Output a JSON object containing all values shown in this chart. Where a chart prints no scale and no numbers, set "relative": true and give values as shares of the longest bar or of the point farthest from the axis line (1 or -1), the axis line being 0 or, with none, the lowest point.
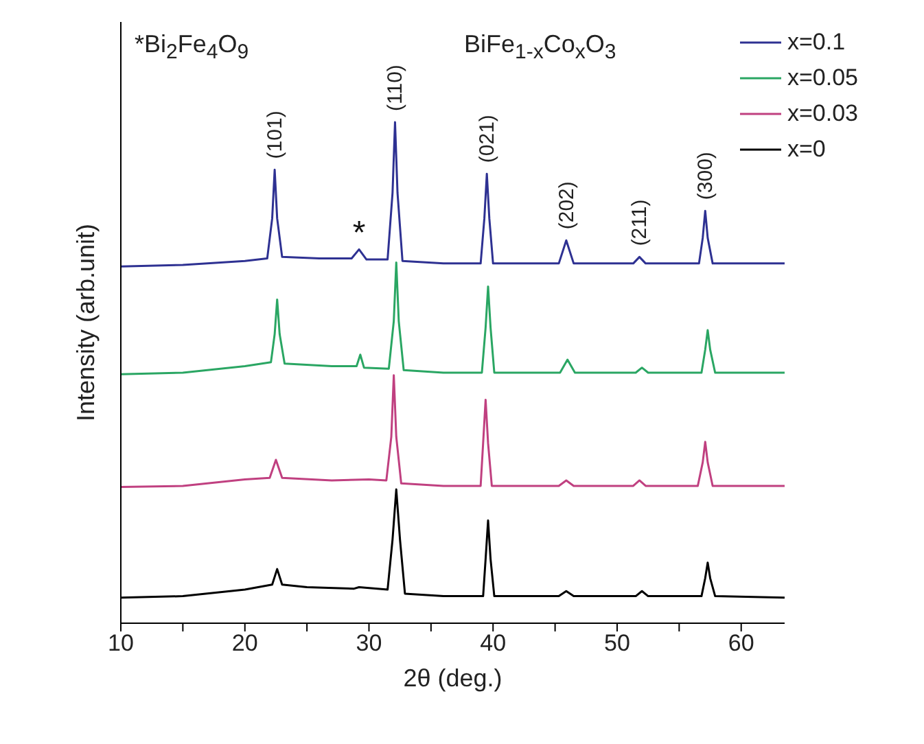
{
  "chart_data": {
    "type": "line",
    "relative": true,
    "xlabel": "2θ (deg.)",
    "ylabel": "Intensity (arb.unit)",
    "xlim": [
      10,
      63.5
    ],
    "xticks": [
      10,
      {
        "value": 15,
        "label": null
      },
      20,
      {
        "value": 25,
        "label": null
      },
      30,
      {
        "value": 35,
        "label": null
      },
      40,
      {
        "value": 45,
        "label": null
      },
      50,
      {
        "value": 55,
        "label": null
      },
      60
    ],
    "legend": "top right",
    "marker": "none",
    "line_style": "solid",
    "annotations": [
      "*Bi$_{2}$Fe$_{4}$O$_{9}$",
      "BiFe$_{1-x}$Co$_{x}$O$_{3}$",
      {
        "text": "(101)",
        "x": 22.4,
        "y": 0.905
      },
      {
        "text": "*",
        "x": 29.2,
        "y": 0.746
      },
      {
        "text": "(110)",
        "x": 32.1,
        "y": 1
      },
      {
        "text": "(021)",
        "x": 39.5,
        "y": 0.897
      },
      {
        "text": "(202)",
        "x": 45.9,
        "y": 0.764
      },
      {
        "text": "(211)",
        "x": 51.8,
        "y": 0.731
      },
      {
        "text": "(300)",
        "x": 57.1,
        "y": 0.823
      }
    ],
    "series": [
      {
        "name": "x=0.1",
        "color": "#2e3192",
        "x": [
          10,
          15,
          20,
          21.8,
          22.2,
          22.4,
          22.6,
          23.0,
          26,
          28.6,
          29.2,
          29.8,
          31.5,
          31.9,
          32.1,
          32.3,
          32.7,
          36,
          39.0,
          39.3,
          39.5,
          39.7,
          40.0,
          45.3,
          45.9,
          46.5,
          51.3,
          51.8,
          52.3,
          56.6,
          56.9,
          57.1,
          57.3,
          57.7,
          63.5
        ],
        "values": [
          0.712,
          0.715,
          0.723,
          0.728,
          0.808,
          0.905,
          0.808,
          0.731,
          0.728,
          0.728,
          0.746,
          0.726,
          0.726,
          0.859,
          1,
          0.859,
          0.723,
          0.718,
          0.718,
          0.808,
          0.897,
          0.808,
          0.718,
          0.718,
          0.764,
          0.718,
          0.718,
          0.731,
          0.718,
          0.718,
          0.769,
          0.823,
          0.769,
          0.718,
          0.718
        ]
      },
      {
        "name": "x=0.05",
        "color": "#2aa663",
        "x": [
          10,
          15,
          20,
          22.1,
          22.4,
          22.6,
          22.8,
          23.2,
          27,
          29.0,
          29.3,
          29.6,
          31.6,
          32.0,
          32.2,
          32.4,
          32.8,
          36,
          39.1,
          39.4,
          39.6,
          39.8,
          40.1,
          45.4,
          46.0,
          46.6,
          51.5,
          52.0,
          52.5,
          56.8,
          57.1,
          57.3,
          57.5,
          57.9,
          63.5
        ],
        "values": [
          0.497,
          0.5,
          0.513,
          0.521,
          0.577,
          0.646,
          0.577,
          0.518,
          0.513,
          0.513,
          0.536,
          0.51,
          0.508,
          0.603,
          0.72,
          0.603,
          0.505,
          0.5,
          0.5,
          0.59,
          0.672,
          0.59,
          0.5,
          0.5,
          0.526,
          0.5,
          0.5,
          0.51,
          0.5,
          0.5,
          0.546,
          0.585,
          0.546,
          0.5,
          0.5
        ]
      },
      {
        "name": "x=0.03",
        "color": "#c04080",
        "x": [
          10,
          15,
          20,
          22.0,
          22.5,
          23.0,
          27,
          30,
          31.4,
          31.8,
          32.0,
          32.2,
          32.6,
          36,
          39.0,
          39.2,
          39.4,
          39.6,
          39.9,
          45.3,
          45.9,
          46.5,
          51.3,
          51.8,
          52.3,
          56.5,
          56.9,
          57.1,
          57.3,
          57.7,
          63.5
        ],
        "values": [
          0.272,
          0.274,
          0.287,
          0.29,
          0.326,
          0.29,
          0.285,
          0.287,
          0.285,
          0.372,
          0.495,
          0.372,
          0.279,
          0.274,
          0.274,
          0.359,
          0.446,
          0.359,
          0.274,
          0.274,
          0.285,
          0.274,
          0.274,
          0.285,
          0.274,
          0.274,
          0.321,
          0.362,
          0.321,
          0.274,
          0.274
        ]
      },
      {
        "name": "x=0",
        "color": "#000000",
        "x": [
          10,
          15,
          20,
          22.2,
          22.6,
          23.0,
          25,
          28.8,
          29.2,
          31.5,
          31.9,
          32.2,
          32.5,
          32.9,
          36,
          39.2,
          39.4,
          39.6,
          39.8,
          40.1,
          45.3,
          45.9,
          46.5,
          51.5,
          52.0,
          52.5,
          56.8,
          57.1,
          57.3,
          57.5,
          57.9,
          63.5
        ],
        "values": [
          0.051,
          0.054,
          0.067,
          0.077,
          0.108,
          0.077,
          0.072,
          0.069,
          0.072,
          0.067,
          0.167,
          0.267,
          0.167,
          0.059,
          0.054,
          0.054,
          0.128,
          0.205,
          0.128,
          0.054,
          0.054,
          0.064,
          0.054,
          0.054,
          0.064,
          0.054,
          0.054,
          0.09,
          0.121,
          0.09,
          0.054,
          0.051
        ]
      }
    ]
  }
}
